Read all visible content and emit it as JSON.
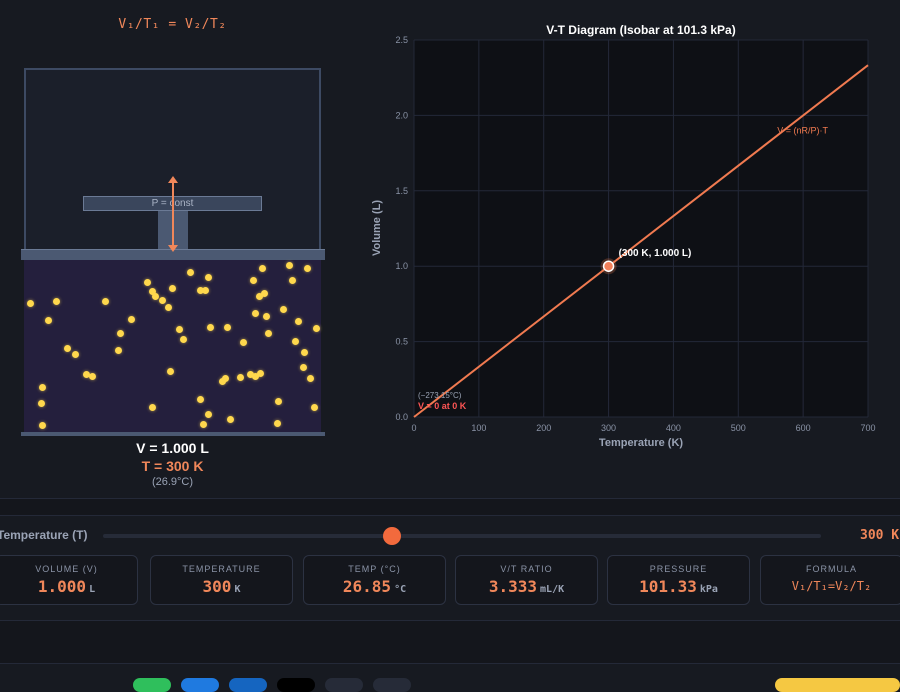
{
  "formula_top": "V₁/T₁ = V₂/T₂",
  "piston_label": "P = const",
  "readouts": {
    "volume": "V = 1.000 L",
    "temperature": "T = 300 K",
    "celsius": "(26.9°C)"
  },
  "slider": {
    "label": "Temperature (T)",
    "value": "300 K",
    "min": 0,
    "max": 700,
    "current": 300
  },
  "cards": [
    {
      "label": "VOLUME (V)",
      "value": "1.000",
      "unit": "L"
    },
    {
      "label": "TEMPERATURE",
      "value": "300",
      "unit": "K"
    },
    {
      "label": "TEMP (°C)",
      "value": "26.85",
      "unit": "°C"
    },
    {
      "label": "V/T RATIO",
      "value": "3.333",
      "unit": "mL/K"
    },
    {
      "label": "PRESSURE",
      "value": "101.33",
      "unit": "kPa"
    },
    {
      "label": "FORMULA",
      "value": "V₁/T₁=V₂/T₂",
      "unit": ""
    }
  ],
  "colors": {
    "accent": "#f0875a",
    "line": "#f07a50",
    "particle": "#ffd84d",
    "point_fill": "#f2805a"
  },
  "chart_data": {
    "type": "line",
    "title": "V-T Diagram (Isobar at 101.3 kPa)",
    "xlabel": "Temperature (K)",
    "ylabel": "Volume (L)",
    "xlim": [
      0,
      700
    ],
    "ylim": [
      0,
      2.5
    ],
    "x_ticks": [
      0,
      100,
      200,
      300,
      400,
      500,
      600,
      700
    ],
    "y_ticks": [
      "0.0",
      "0.5",
      "1.0",
      "1.5",
      "2.0",
      "2.5"
    ],
    "grid": true,
    "series": [
      {
        "name": "V = (nR/P)·T",
        "x": [
          0,
          700
        ],
        "y": [
          0,
          2.333
        ]
      }
    ],
    "current_point": {
      "x": 300,
      "y": 1.0,
      "label": "(300 K, 1.000 L)"
    },
    "annotations": {
      "origin_top": "(−273.15°C)",
      "origin_bottom": "V = 0 at 0 K"
    }
  }
}
